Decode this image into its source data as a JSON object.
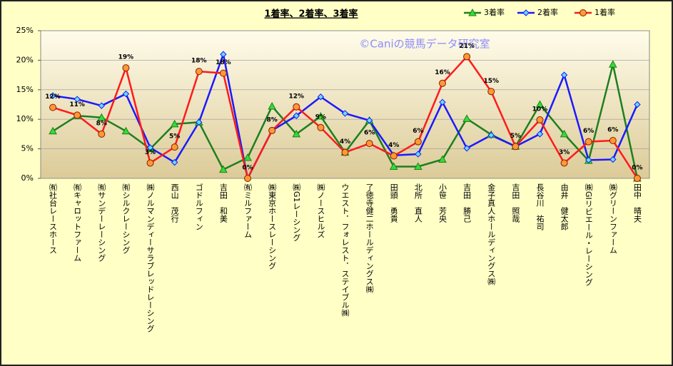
{
  "chart_data": {
    "type": "line",
    "title": "1着率、2着率、3着率",
    "watermark": "©Caniの競馬データ研究室",
    "categories": [
      "㈲社台レースホース",
      "㈲キャロットファーム",
      "㈲サンデーレーシング",
      "㈲シルクレーシング",
      "㈱ノルマンディーサラブレッドレーシング",
      "西山　茂行",
      "ゴドルフィン",
      "吉田　和美",
      "㈲ミルファーム",
      "㈱東京ホースレーシング",
      "㈱G1レーシング",
      "㈱ノースヒルズ",
      "ウエスト．フォレスト．ステイブル㈱",
      "了徳寺健二ホールディングス㈱",
      "田頭　勇貴",
      "北所　直人",
      "小笹　芳央",
      "吉田　勝己",
      "金子真人ホールディングス㈱",
      "吉田　照哉",
      "長谷川　祐司",
      "由井　健太郎",
      "㈱GIリビエール・レーシング",
      "㈱グリーンファーム",
      "田中　晴夫"
    ],
    "series": [
      {
        "name": "3着率",
        "color": "#1e7f1e",
        "marker": "triangle",
        "marker_fill": "#33dd33",
        "values": [
          8.0,
          10.6,
          10.3,
          8.0,
          5.0,
          9.2,
          9.5,
          1.5,
          3.5,
          12.2,
          7.5,
          10.5,
          4.4,
          9.8,
          2.0,
          2.0,
          3.2,
          10.1,
          7.4,
          5.4,
          12.5,
          7.5,
          3.0,
          19.3,
          0
        ]
      },
      {
        "name": "2着率",
        "color": "#1a1aff",
        "marker": "diamond",
        "marker_fill": "#66ddff",
        "values": [
          14.0,
          13.4,
          12.3,
          14.3,
          5.2,
          2.7,
          9.5,
          21.0,
          0,
          8.1,
          10.6,
          13.8,
          11.0,
          9.8,
          3.9,
          4.1,
          12.9,
          5.1,
          7.3,
          5.4,
          7.5,
          17.5,
          3.1,
          3.2,
          12.5
        ]
      },
      {
        "name": "1着率",
        "color": "#ff1a1a",
        "marker": "circle",
        "marker_fill": "#ff9933",
        "values": [
          12.0,
          10.7,
          7.5,
          18.7,
          2.6,
          5.3,
          18.1,
          17.8,
          0,
          8.1,
          12.1,
          8.6,
          4.4,
          5.9,
          3.8,
          6.2,
          16.1,
          20.6,
          14.7,
          5.4,
          9.9,
          2.6,
          6.2,
          6.4,
          0
        ],
        "value_labels": [
          "12%",
          "11%",
          "8%",
          "19%",
          "3%",
          "5%",
          "18%",
          "18%",
          "0%",
          "8%",
          "12%",
          "9%",
          "4%",
          "6%",
          "4%",
          "6%",
          "16%",
          "21%",
          "15%",
          "5%",
          "10%",
          "3%",
          "6%",
          "6%",
          "0%"
        ]
      }
    ],
    "ylim": [
      0,
      25
    ],
    "yticks": [
      {
        "value": 0,
        "label": "0%"
      },
      {
        "value": 5,
        "label": "5%"
      },
      {
        "value": 10,
        "label": "10%"
      },
      {
        "value": 15,
        "label": "15%"
      },
      {
        "value": 20,
        "label": "20%"
      },
      {
        "value": 25,
        "label": "25%"
      }
    ],
    "grid": true
  }
}
